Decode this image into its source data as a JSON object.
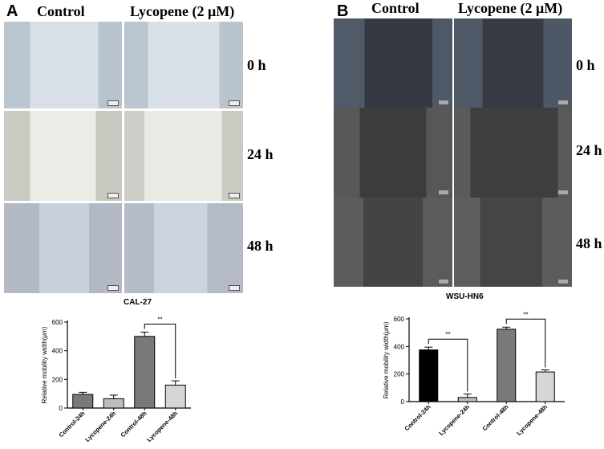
{
  "panel_a": {
    "letter": "A",
    "columns": [
      "Control",
      "Lycopene (2 μM)"
    ],
    "rows": [
      "0 h",
      "24 h",
      "48 h"
    ]
  },
  "panel_b": {
    "letter": "B",
    "columns": [
      "Control",
      "Lycopene (2 μM)"
    ],
    "rows": [
      "0 h",
      "24 h",
      "48 h"
    ]
  },
  "colors": {
    "control_24": "#000000",
    "lycopene_24": "#bdbdbd",
    "control_48": "#7a7a7a",
    "lycopene_48": "#d6d6d6"
  },
  "chart_data": [
    {
      "type": "bar",
      "title": "CAL-27",
      "ylabel": "Relative mobility width(μm)",
      "categories": [
        "Control-24h",
        "Lycopene-24h",
        "Control-48h",
        "Lycopene-48h"
      ],
      "values": [
        95,
        65,
        500,
        160
      ],
      "errors": [
        15,
        25,
        30,
        30
      ],
      "colors": [
        "#7a7a7a",
        "#bdbdbd",
        "#7a7a7a",
        "#d6d6d6"
      ],
      "ylim": [
        0,
        600
      ],
      "yticks": [
        "0",
        "200",
        "400",
        "600"
      ],
      "significance": [
        {
          "from": 2,
          "to": 3,
          "label": "**"
        }
      ]
    },
    {
      "type": "bar",
      "title": "WSU-HN6",
      "ylabel": "Relative mobility width(μm)",
      "categories": [
        "Control-24h",
        "Lycopene-24h",
        "Control-48h",
        "Lycopene-48h"
      ],
      "values": [
        375,
        30,
        525,
        215
      ],
      "errors": [
        20,
        25,
        15,
        15
      ],
      "colors": [
        "#000000",
        "#bdbdbd",
        "#7a7a7a",
        "#d6d6d6"
      ],
      "ylim": [
        0,
        600
      ],
      "yticks": [
        "0",
        "200",
        "400",
        "600"
      ],
      "significance": [
        {
          "from": 0,
          "to": 1,
          "label": "**"
        },
        {
          "from": 2,
          "to": 3,
          "label": "**"
        }
      ]
    }
  ]
}
